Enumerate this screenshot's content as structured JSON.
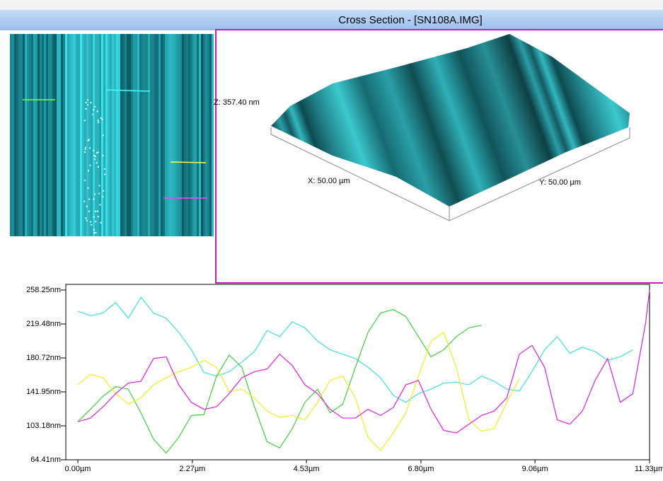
{
  "window_title": "Cross Section - [SN108A.IMG]",
  "view3d": {
    "z_label": "Z: 357.40 nm",
    "x_label": "X: 50.00 µm",
    "y_label": "Y: 50.00 µm"
  },
  "chart_data": {
    "type": "line",
    "x": [
      0,
      0.25,
      0.5,
      0.75,
      1,
      1.25,
      1.5,
      1.75,
      2,
      2.25,
      2.5,
      2.75,
      3,
      3.25,
      3.5,
      3.75,
      4,
      4.25,
      4.5,
      4.75,
      5,
      5.25,
      5.5,
      5.75,
      6,
      6.25,
      6.5,
      6.75,
      7,
      7.25,
      7.5,
      7.75,
      8,
      8.25,
      8.5,
      8.75,
      9,
      9.25,
      9.5,
      9.75,
      10,
      10.25,
      10.5,
      10.75,
      11,
      11.25,
      11.33
    ],
    "series": [
      {
        "color": "#40e0e0",
        "values": [
          234,
          229,
          232,
          244,
          226,
          250,
          232,
          226,
          210,
          190,
          164,
          160,
          165,
          176,
          188,
          212,
          205,
          222,
          215,
          200,
          190,
          185,
          180,
          170,
          158,
          138,
          130,
          140,
          145,
          152,
          153,
          150,
          160,
          154,
          145,
          143,
          165,
          190,
          205,
          186,
          193,
          188,
          178,
          182,
          190,
          null,
          null
        ]
      },
      {
        "color": "#40d040",
        "values": [
          108,
          122,
          137,
          148,
          145,
          118,
          88,
          72,
          90,
          115,
          116,
          160,
          184,
          170,
          125,
          85,
          78,
          100,
          130,
          145,
          118,
          128,
          170,
          210,
          232,
          236,
          228,
          205,
          182,
          190,
          205,
          215,
          218,
          null,
          null,
          null,
          null,
          null,
          null,
          null,
          null,
          null,
          null,
          null,
          null,
          null,
          null
        ]
      },
      {
        "color": "#f0f020",
        "values": [
          150,
          162,
          158,
          140,
          128,
          135,
          150,
          158,
          165,
          170,
          178,
          170,
          142,
          145,
          135,
          120,
          113,
          115,
          110,
          130,
          155,
          160,
          135,
          90,
          75,
          95,
          118,
          160,
          200,
          210,
          170,
          110,
          97,
          100,
          130,
          157,
          null,
          null,
          null,
          null,
          null,
          null,
          null,
          null,
          null,
          null,
          null
        ]
      },
      {
        "color": "#e020e0",
        "values": [
          108,
          112,
          125,
          140,
          152,
          154,
          180,
          182,
          150,
          130,
          122,
          125,
          140,
          158,
          165,
          168,
          185,
          172,
          150,
          140,
          122,
          112,
          112,
          122,
          115,
          124,
          150,
          155,
          122,
          98,
          95,
          105,
          115,
          120,
          135,
          185,
          195,
          170,
          110,
          105,
          120,
          155,
          180,
          130,
          140,
          220,
          258
        ]
      }
    ],
    "xlim": [
      0,
      11.33
    ],
    "ylim": [
      64.41,
      258.25
    ],
    "xticks": [
      {
        "value": 0,
        "label": "0.00µm"
      },
      {
        "value": 2.27,
        "label": "2.27µm"
      },
      {
        "value": 4.53,
        "label": "4.53µm"
      },
      {
        "value": 6.8,
        "label": "6.80µm"
      },
      {
        "value": 9.06,
        "label": "9.06µm"
      },
      {
        "value": 11.33,
        "label": "11.33µm"
      }
    ],
    "yticks": [
      {
        "value": 64.41,
        "label": "64.41nm"
      },
      {
        "value": 103.18,
        "label": "103.18nm"
      },
      {
        "value": 141.95,
        "label": "141.95nm"
      },
      {
        "value": 180.72,
        "label": "180.72nm"
      },
      {
        "value": 219.48,
        "label": "219.48nm"
      },
      {
        "value": 258.25,
        "label": "258.25nm"
      }
    ]
  }
}
